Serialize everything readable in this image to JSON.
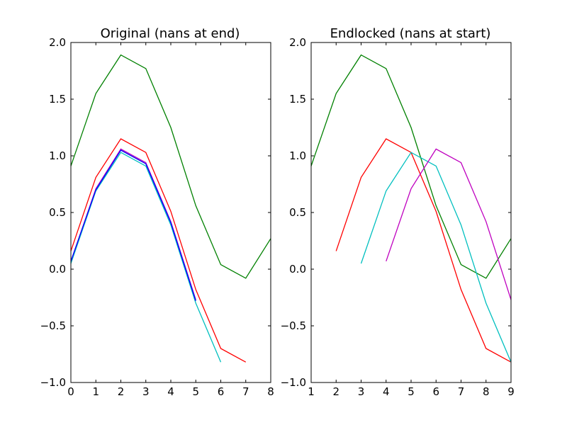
{
  "chart_data": [
    {
      "type": "line",
      "title": "Original (nans at end)",
      "xlabel": "",
      "ylabel": "",
      "xlim": [
        0,
        8
      ],
      "ylim": [
        -1.0,
        2.0
      ],
      "xticks": [
        0,
        1,
        2,
        3,
        4,
        5,
        6,
        7,
        8
      ],
      "xtick_labels": [
        "0",
        "1",
        "2",
        "3",
        "4",
        "5",
        "6",
        "7",
        "8"
      ],
      "yticks": [
        2.0,
        1.5,
        1.0,
        0.5,
        0.0,
        -0.5,
        -1.0
      ],
      "ytick_labels": [
        "2.0",
        "1.5",
        "1.0",
        "0.5",
        "0.0",
        "−0.5",
        "−1.0"
      ],
      "grid": false,
      "legend": false,
      "series": [
        {
          "color": "#008000",
          "x": [
            0,
            1,
            2,
            3,
            4,
            5,
            6,
            7,
            8
          ],
          "y": [
            0.91,
            1.55,
            1.89,
            1.77,
            1.25,
            0.56,
            0.04,
            -0.08,
            0.27
          ]
        },
        {
          "color": "#ff0000",
          "x": [
            0,
            1,
            2,
            3,
            4,
            5,
            6,
            7
          ],
          "y": [
            0.16,
            0.81,
            1.15,
            1.03,
            0.51,
            -0.18,
            -0.7,
            -0.82
          ]
        },
        {
          "color": "#00bfbf",
          "x": [
            0,
            1,
            2,
            3,
            4,
            5,
            6
          ],
          "y": [
            0.05,
            0.69,
            1.03,
            0.91,
            0.39,
            -0.3,
            -0.82
          ]
        },
        {
          "color": "#bf00bf",
          "x": [
            0,
            1,
            2,
            3,
            4,
            5
          ],
          "y": [
            0.07,
            0.71,
            1.06,
            0.94,
            0.42,
            -0.27
          ]
        },
        {
          "color": "#0000ff",
          "x": [
            0,
            1,
            2,
            3,
            4,
            5
          ],
          "y": [
            0.07,
            0.7,
            1.05,
            0.93,
            0.41,
            -0.28
          ]
        }
      ]
    },
    {
      "type": "line",
      "title": "Endlocked (nans at start)",
      "xlabel": "",
      "ylabel": "",
      "xlim": [
        1,
        9
      ],
      "ylim": [
        -1.0,
        2.0
      ],
      "xticks": [
        1,
        2,
        3,
        4,
        5,
        6,
        7,
        8,
        9
      ],
      "xtick_labels": [
        "1",
        "2",
        "3",
        "4",
        "5",
        "6",
        "7",
        "8",
        "9"
      ],
      "yticks": [
        2.0,
        1.5,
        1.0,
        0.5,
        0.0,
        -0.5,
        -1.0
      ],
      "ytick_labels": [
        "2.0",
        "1.5",
        "1.0",
        "0.5",
        "0.0",
        "−0.5",
        "−1.0"
      ],
      "grid": false,
      "legend": false,
      "series": [
        {
          "color": "#008000",
          "x": [
            1,
            2,
            3,
            4,
            5,
            6,
            7,
            8,
            9
          ],
          "y": [
            0.91,
            1.55,
            1.89,
            1.77,
            1.25,
            0.56,
            0.04,
            -0.08,
            0.27
          ]
        },
        {
          "color": "#ff0000",
          "x": [
            2,
            3,
            4,
            5,
            6,
            7,
            8,
            9
          ],
          "y": [
            0.16,
            0.81,
            1.15,
            1.03,
            0.51,
            -0.18,
            -0.7,
            -0.82
          ]
        },
        {
          "color": "#00bfbf",
          "x": [
            3,
            4,
            5,
            6,
            7,
            8,
            9
          ],
          "y": [
            0.05,
            0.69,
            1.03,
            0.91,
            0.39,
            -0.3,
            -0.82
          ]
        },
        {
          "color": "#bf00bf",
          "x": [
            4,
            5,
            6,
            7,
            8,
            9
          ],
          "y": [
            0.07,
            0.71,
            1.06,
            0.94,
            0.42,
            -0.27
          ]
        }
      ]
    }
  ]
}
